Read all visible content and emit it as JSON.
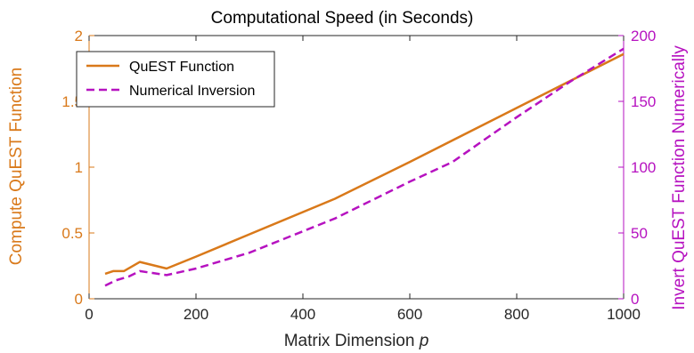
{
  "chart_data": {
    "type": "line",
    "title": "Computational Speed (in Seconds)",
    "xlabel": "Matrix Dimension",
    "xlabel_var": "p",
    "ylabel_left": "Compute QuEST Function",
    "ylabel_right": "Invert QuEST Function Numerically",
    "xlim": [
      0,
      1000
    ],
    "ylim_left": [
      0,
      2
    ],
    "ylim_right": [
      0,
      200
    ],
    "x_ticks": [
      0,
      200,
      400,
      600,
      800,
      1000
    ],
    "y_ticks_left": [
      0,
      0.5,
      1,
      1.5,
      2
    ],
    "y_ticks_right": [
      0,
      50,
      100,
      150,
      200
    ],
    "legend_position": "top-left",
    "colors": {
      "left_axis": "#D9791A",
      "right_axis": "#B612C0"
    },
    "series": [
      {
        "name": "QuEST Function",
        "axis": "left",
        "style": "solid",
        "color": "#D9791A",
        "x": [
          30,
          45,
          65,
          95,
          145,
          200,
          300,
          460,
          600,
          800,
          1000
        ],
        "y": [
          0.19,
          0.21,
          0.21,
          0.28,
          0.23,
          0.32,
          0.49,
          0.76,
          1.04,
          1.45,
          1.86
        ]
      },
      {
        "name": "Numerical Inversion",
        "axis": "right",
        "style": "dashed",
        "color": "#B612C0",
        "x": [
          30,
          50,
          75,
          95,
          145,
          200,
          300,
          460,
          600,
          680,
          800,
          900,
          1000
        ],
        "y": [
          10,
          14,
          17,
          21,
          18,
          23,
          35,
          61,
          89,
          104,
          138,
          165,
          190
        ]
      }
    ]
  }
}
